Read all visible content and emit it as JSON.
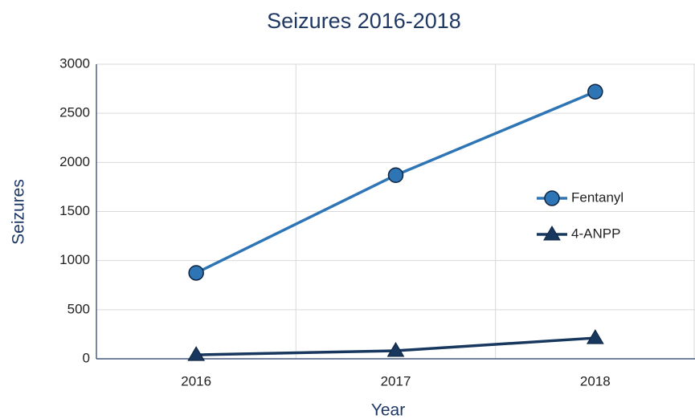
{
  "chart_data": {
    "type": "line",
    "title": "Seizures 2016-2018",
    "x_label": "Year",
    "y_label": "Seizures",
    "categories": [
      "2016",
      "2017",
      "2018"
    ],
    "series": [
      {
        "name": "Fentanyl",
        "color": "#2e75b6",
        "marker": "circle",
        "values": [
          875,
          1870,
          2720
        ]
      },
      {
        "name": "4-ANPP",
        "color": "#17375e",
        "marker": "triangle",
        "values": [
          40,
          82,
          212
        ]
      }
    ],
    "ylim": [
      0,
      3000
    ],
    "yticks": [
      0,
      500,
      1000,
      1500,
      2000,
      2500,
      3000
    ],
    "grid": true,
    "legend": "right"
  }
}
